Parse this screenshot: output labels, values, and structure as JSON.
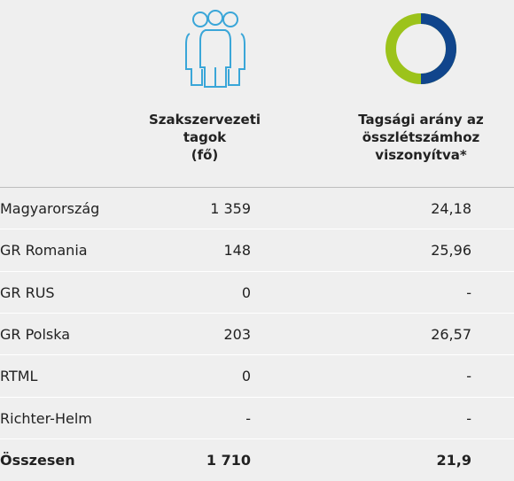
{
  "header": {
    "columns": [
      [
        "Szakszervezeti",
        "tagok",
        "(fő)"
      ],
      [
        "Tagsági arány az",
        "összlétszámhoz",
        "viszonyítva*"
      ]
    ]
  },
  "table": {
    "rows": [
      [
        "Magyarország",
        "1 359",
        "24,18"
      ],
      [
        "GR Romania",
        "148",
        "25,96"
      ],
      [
        "GR RUS",
        "0",
        "-"
      ],
      [
        "GR Polska",
        "203",
        "26,57"
      ],
      [
        "RTML",
        "0",
        "-"
      ],
      [
        "Richter-Helm",
        "-",
        "-"
      ]
    ],
    "total": [
      "Összesen",
      "1 710",
      "21,9"
    ]
  }
}
